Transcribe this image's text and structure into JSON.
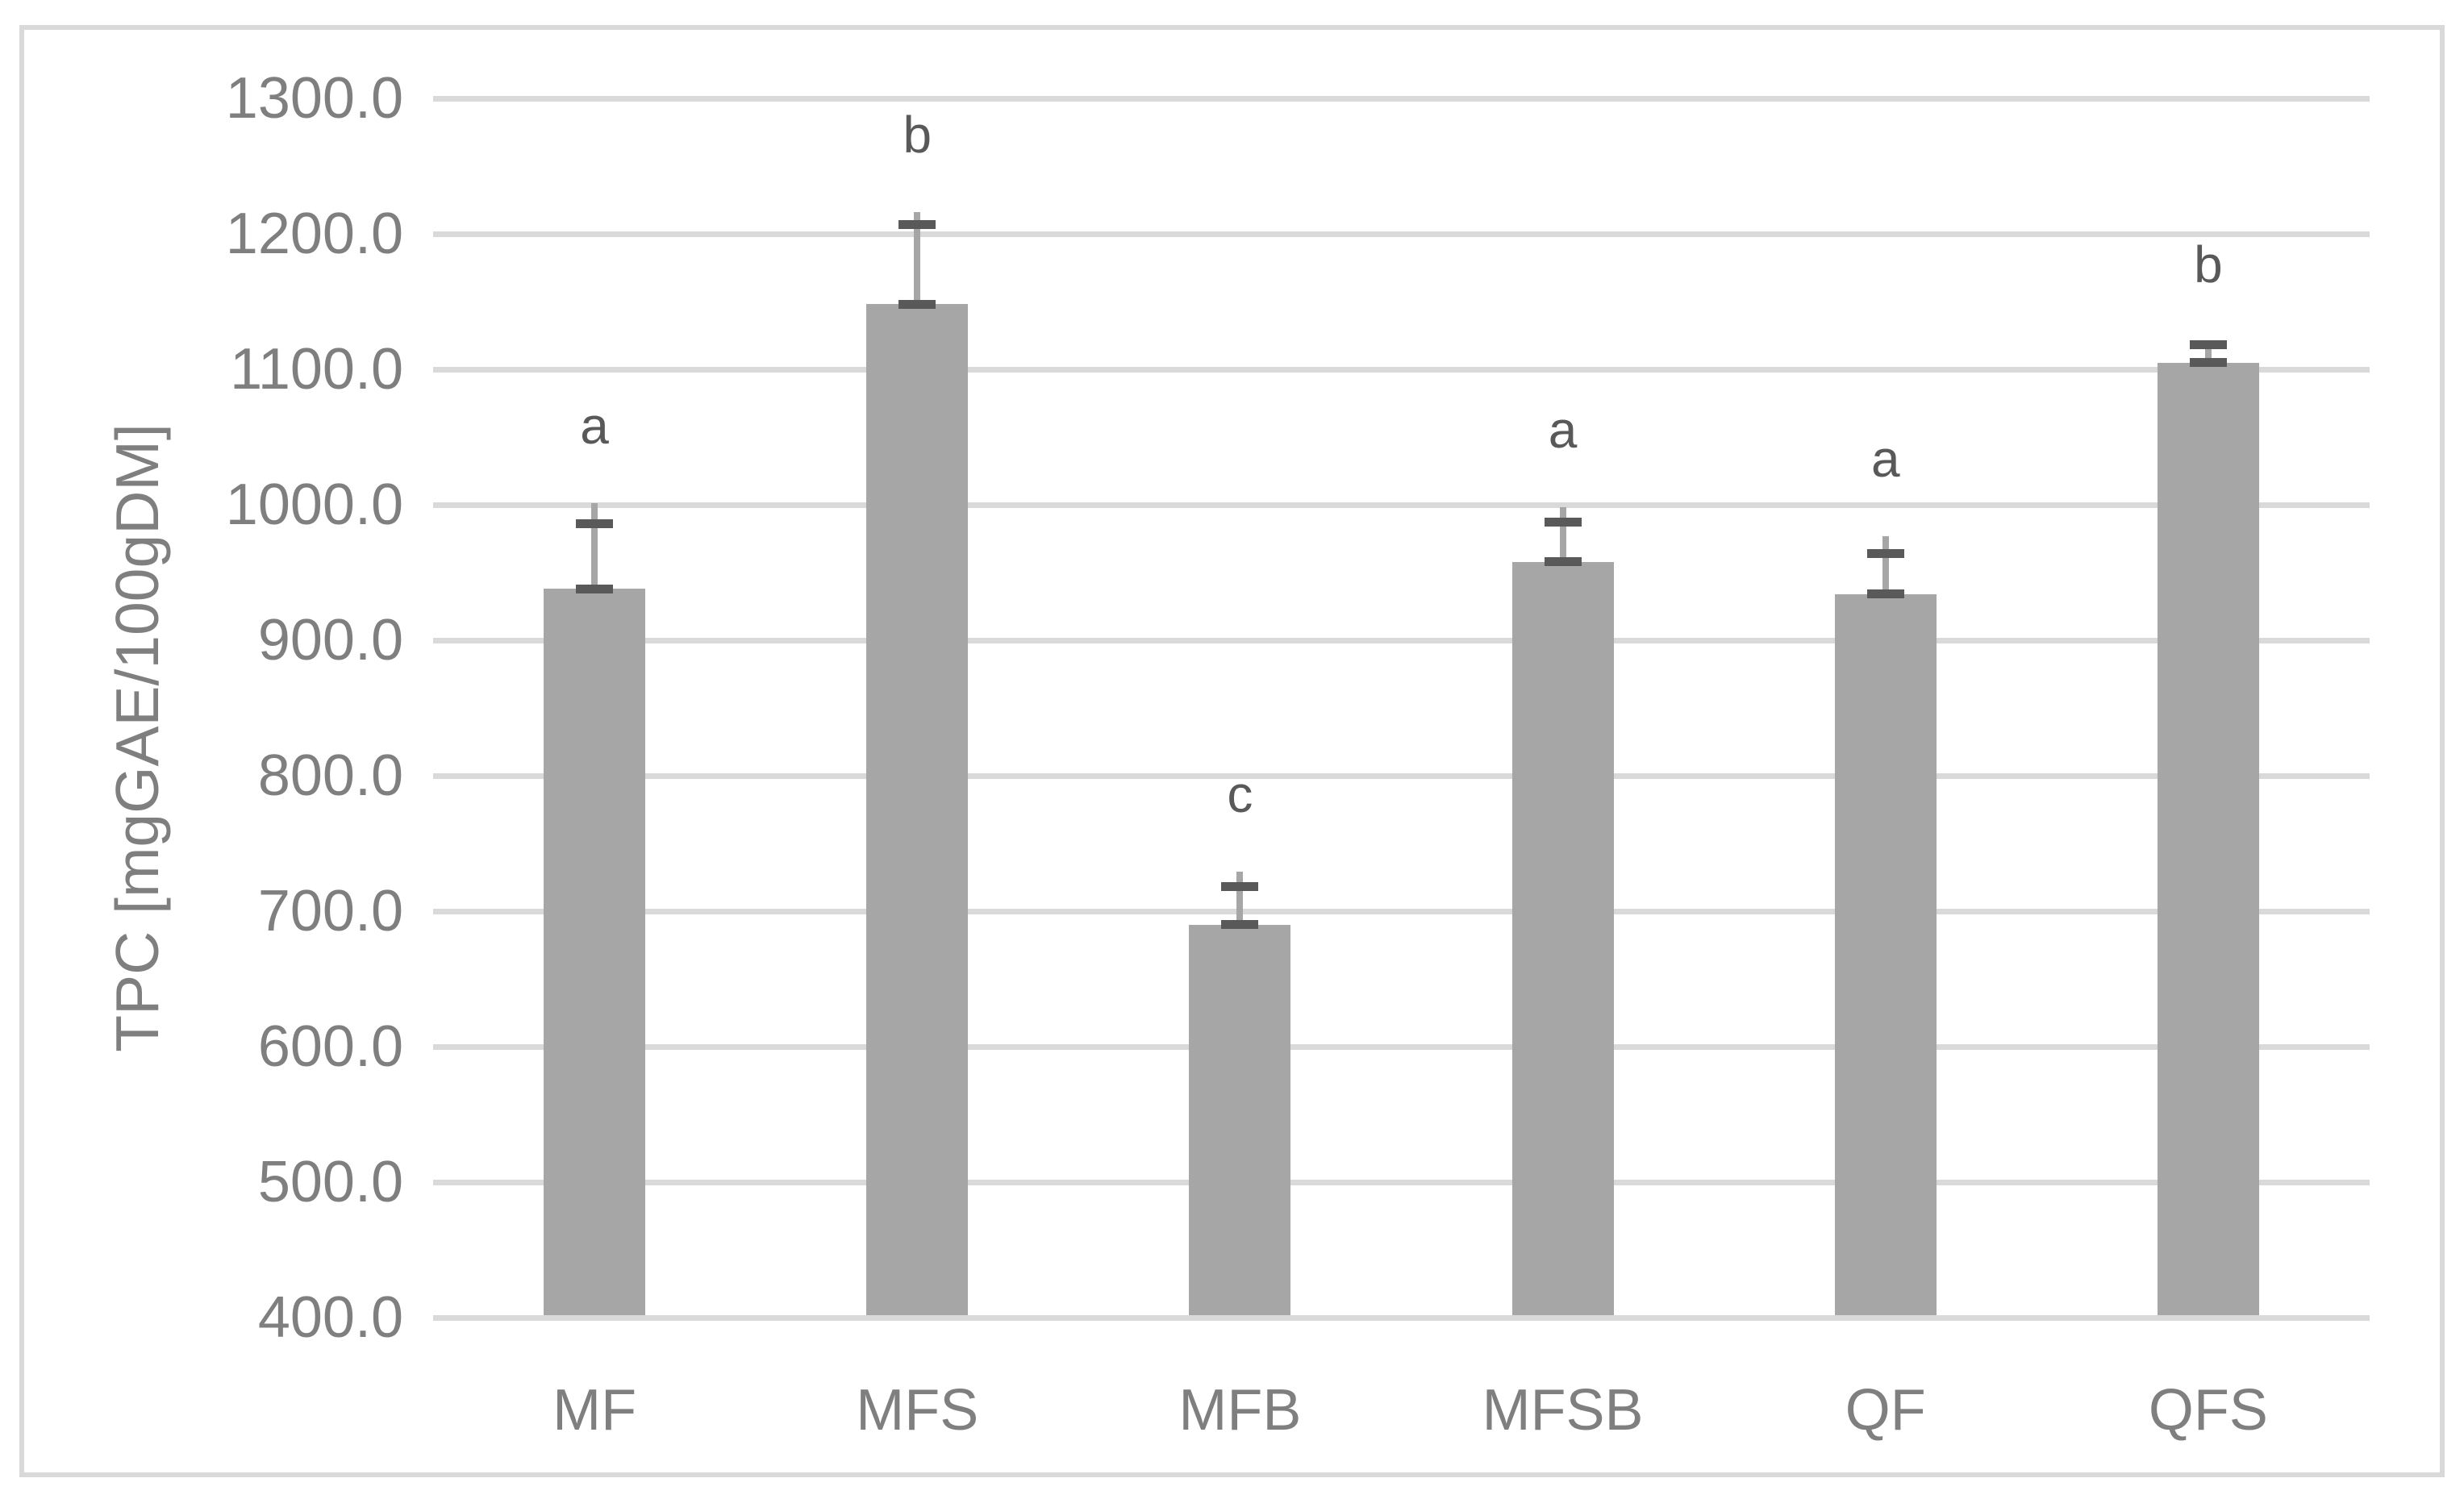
{
  "chart_data": {
    "type": "bar",
    "title": "",
    "xlabel": "",
    "ylabel": "TPC [mgGAE/100gDM]",
    "categories": [
      "MF",
      "MFS",
      "MFB",
      "MFSB",
      "QF",
      "QFS"
    ],
    "values": [
      938,
      1148,
      690,
      958,
      934,
      1105
    ],
    "errors_plus": [
      48,
      59,
      28,
      29,
      30,
      13
    ],
    "whisker_tips": [
      1001,
      1216,
      729,
      998,
      977,
      1120
    ],
    "sig_letters": [
      "a",
      "b",
      "c",
      "a",
      "a",
      "b"
    ],
    "ylim": [
      400,
      1300
    ],
    "ytick_step": 100,
    "ytick_labels": [
      "1300.0",
      "1200.0",
      "1100.0",
      "1000.0",
      "900.0",
      "800.0",
      "700.0",
      "600.0",
      "500.0",
      "400.0"
    ],
    "grid": true,
    "legend_position": "none",
    "colors": {
      "bar": "#a6a6a6",
      "error_line": "#a6a6a6",
      "error_cap": "#595959",
      "gridline": "#d9d9d9",
      "frame_border": "#d9d9d9",
      "axis_text": "#7f7f7f",
      "letter_text": "#595959",
      "background": "#ffffff"
    }
  }
}
